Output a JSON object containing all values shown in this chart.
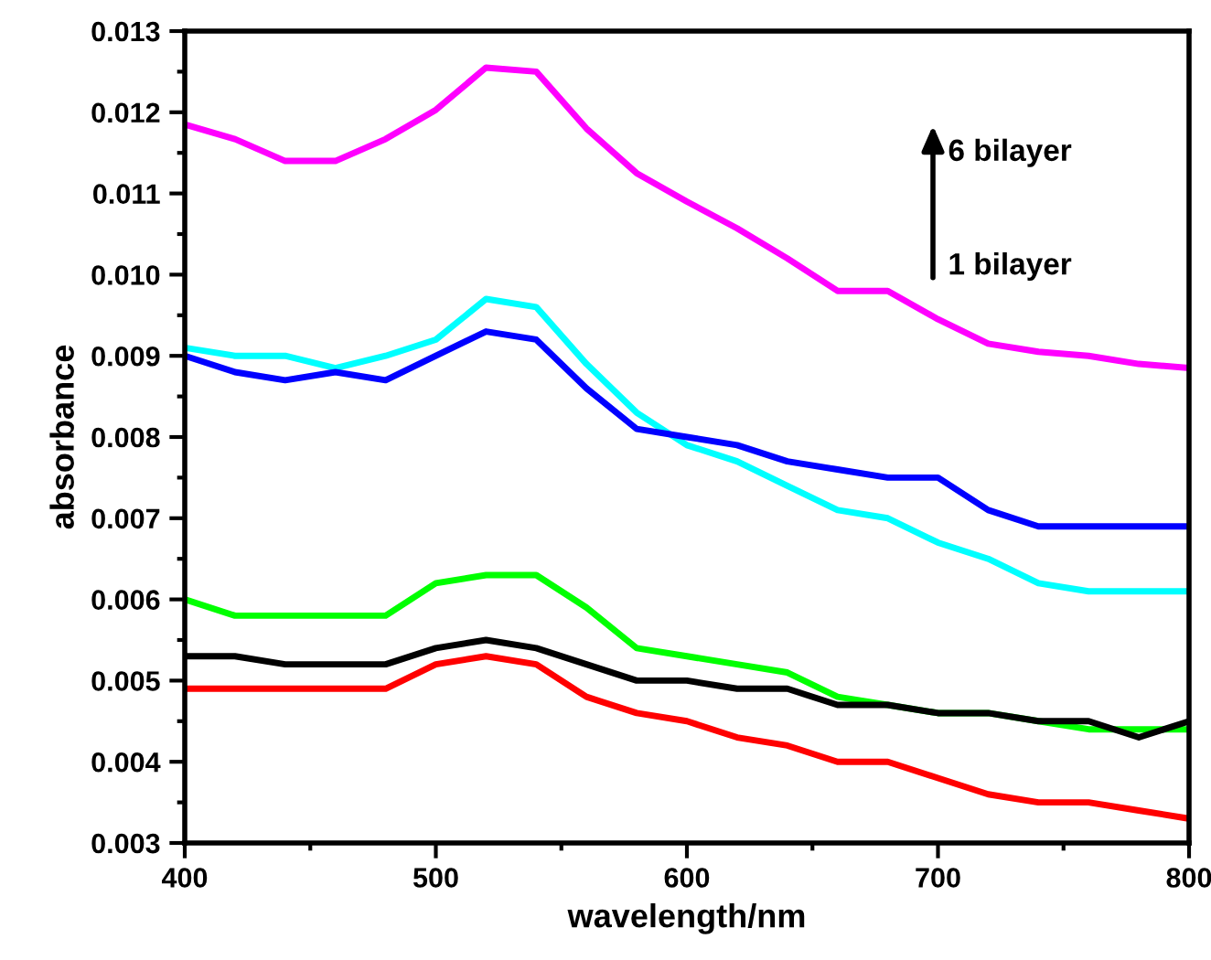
{
  "chart_data": {
    "type": "line",
    "xlabel": "wavelength/nm",
    "ylabel": "absorbance",
    "x": [
      400,
      420,
      440,
      460,
      480,
      500,
      520,
      540,
      560,
      580,
      600,
      620,
      640,
      660,
      680,
      700,
      720,
      740,
      760,
      780,
      800
    ],
    "series": [
      {
        "color": "#ff00ff",
        "values": [
          0.01185,
          0.01167,
          0.0114,
          0.0114,
          0.01167,
          0.01203,
          0.01255,
          0.0125,
          0.0118,
          0.01125,
          0.0109,
          0.01057,
          0.0102,
          0.0098,
          0.0098,
          0.00945,
          0.00915,
          0.00905,
          0.009,
          0.0089,
          0.00885
        ]
      },
      {
        "color": "#00ffff",
        "values": [
          0.0091,
          0.009,
          0.009,
          0.00885,
          0.009,
          0.0092,
          0.0097,
          0.0096,
          0.0089,
          0.0083,
          0.0079,
          0.0077,
          0.0074,
          0.0071,
          0.007,
          0.0067,
          0.0065,
          0.0062,
          0.0061,
          0.0061,
          0.0061
        ]
      },
      {
        "color": "#0000ff",
        "values": [
          0.009,
          0.0088,
          0.0087,
          0.0088,
          0.0087,
          0.009,
          0.0093,
          0.0092,
          0.0086,
          0.0081,
          0.008,
          0.0079,
          0.0077,
          0.0076,
          0.0075,
          0.0075,
          0.0071,
          0.0069,
          0.0069,
          0.0069,
          0.0069
        ]
      },
      {
        "color": "#00ff00",
        "values": [
          0.006,
          0.0058,
          0.0058,
          0.0058,
          0.0058,
          0.0062,
          0.0063,
          0.0063,
          0.0059,
          0.0054,
          0.0053,
          0.0052,
          0.0051,
          0.0048,
          0.0047,
          0.0046,
          0.0046,
          0.0045,
          0.0044,
          0.0044,
          0.0044
        ]
      },
      {
        "color": "#000000",
        "values": [
          0.0053,
          0.0053,
          0.0052,
          0.0052,
          0.0052,
          0.0054,
          0.0055,
          0.0054,
          0.0052,
          0.005,
          0.005,
          0.0049,
          0.0049,
          0.0047,
          0.0047,
          0.0046,
          0.0046,
          0.0045,
          0.0045,
          0.0043,
          0.0045
        ]
      },
      {
        "color": "#ff0000",
        "values": [
          0.0049,
          0.0049,
          0.0049,
          0.0049,
          0.0049,
          0.0052,
          0.0053,
          0.0052,
          0.0048,
          0.0046,
          0.0045,
          0.0043,
          0.0042,
          0.004,
          0.004,
          0.0038,
          0.0036,
          0.0035,
          0.0035,
          0.0034,
          0.0033
        ]
      }
    ],
    "xlim": [
      400,
      800
    ],
    "xticks": [
      400,
      500,
      600,
      700,
      800
    ],
    "ylim": [
      0.003,
      0.013
    ],
    "yticks": [
      0.003,
      0.004,
      0.005,
      0.006,
      0.007,
      0.008,
      0.009,
      {
        "value": 0.01,
        "label": "0.010"
      },
      0.011,
      0.012,
      0.013
    ],
    "annotations": [
      "6 bilayer",
      "1 bilayer"
    ],
    "grid": false,
    "legend": false,
    "line_style": "solid",
    "marker": "none"
  }
}
